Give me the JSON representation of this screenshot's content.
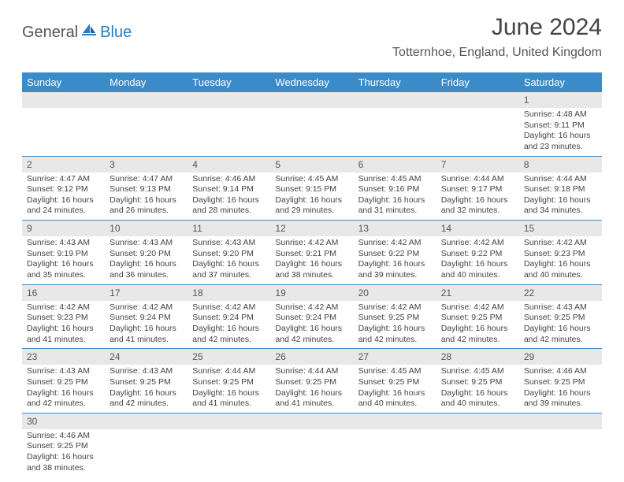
{
  "logo": {
    "text1": "General",
    "text2": "Blue"
  },
  "title": "June 2024",
  "location": "Totternhoe, England, United Kingdom",
  "colors": {
    "header_bg": "#3b8bc9",
    "daynum_bg": "#e8e8e8",
    "border": "#3b8bc9",
    "text": "#444444",
    "logo_gray": "#555555",
    "logo_blue": "#2a7bbf"
  },
  "day_names": [
    "Sunday",
    "Monday",
    "Tuesday",
    "Wednesday",
    "Thursday",
    "Friday",
    "Saturday"
  ],
  "weeks": [
    [
      null,
      null,
      null,
      null,
      null,
      null,
      {
        "n": "1",
        "sr": "4:48 AM",
        "ss": "9:11 PM",
        "dl": "16 hours and 23 minutes."
      }
    ],
    [
      {
        "n": "2",
        "sr": "4:47 AM",
        "ss": "9:12 PM",
        "dl": "16 hours and 24 minutes."
      },
      {
        "n": "3",
        "sr": "4:47 AM",
        "ss": "9:13 PM",
        "dl": "16 hours and 26 minutes."
      },
      {
        "n": "4",
        "sr": "4:46 AM",
        "ss": "9:14 PM",
        "dl": "16 hours and 28 minutes."
      },
      {
        "n": "5",
        "sr": "4:45 AM",
        "ss": "9:15 PM",
        "dl": "16 hours and 29 minutes."
      },
      {
        "n": "6",
        "sr": "4:45 AM",
        "ss": "9:16 PM",
        "dl": "16 hours and 31 minutes."
      },
      {
        "n": "7",
        "sr": "4:44 AM",
        "ss": "9:17 PM",
        "dl": "16 hours and 32 minutes."
      },
      {
        "n": "8",
        "sr": "4:44 AM",
        "ss": "9:18 PM",
        "dl": "16 hours and 34 minutes."
      }
    ],
    [
      {
        "n": "9",
        "sr": "4:43 AM",
        "ss": "9:19 PM",
        "dl": "16 hours and 35 minutes."
      },
      {
        "n": "10",
        "sr": "4:43 AM",
        "ss": "9:20 PM",
        "dl": "16 hours and 36 minutes."
      },
      {
        "n": "11",
        "sr": "4:43 AM",
        "ss": "9:20 PM",
        "dl": "16 hours and 37 minutes."
      },
      {
        "n": "12",
        "sr": "4:42 AM",
        "ss": "9:21 PM",
        "dl": "16 hours and 38 minutes."
      },
      {
        "n": "13",
        "sr": "4:42 AM",
        "ss": "9:22 PM",
        "dl": "16 hours and 39 minutes."
      },
      {
        "n": "14",
        "sr": "4:42 AM",
        "ss": "9:22 PM",
        "dl": "16 hours and 40 minutes."
      },
      {
        "n": "15",
        "sr": "4:42 AM",
        "ss": "9:23 PM",
        "dl": "16 hours and 40 minutes."
      }
    ],
    [
      {
        "n": "16",
        "sr": "4:42 AM",
        "ss": "9:23 PM",
        "dl": "16 hours and 41 minutes."
      },
      {
        "n": "17",
        "sr": "4:42 AM",
        "ss": "9:24 PM",
        "dl": "16 hours and 41 minutes."
      },
      {
        "n": "18",
        "sr": "4:42 AM",
        "ss": "9:24 PM",
        "dl": "16 hours and 42 minutes."
      },
      {
        "n": "19",
        "sr": "4:42 AM",
        "ss": "9:24 PM",
        "dl": "16 hours and 42 minutes."
      },
      {
        "n": "20",
        "sr": "4:42 AM",
        "ss": "9:25 PM",
        "dl": "16 hours and 42 minutes."
      },
      {
        "n": "21",
        "sr": "4:42 AM",
        "ss": "9:25 PM",
        "dl": "16 hours and 42 minutes."
      },
      {
        "n": "22",
        "sr": "4:43 AM",
        "ss": "9:25 PM",
        "dl": "16 hours and 42 minutes."
      }
    ],
    [
      {
        "n": "23",
        "sr": "4:43 AM",
        "ss": "9:25 PM",
        "dl": "16 hours and 42 minutes."
      },
      {
        "n": "24",
        "sr": "4:43 AM",
        "ss": "9:25 PM",
        "dl": "16 hours and 42 minutes."
      },
      {
        "n": "25",
        "sr": "4:44 AM",
        "ss": "9:25 PM",
        "dl": "16 hours and 41 minutes."
      },
      {
        "n": "26",
        "sr": "4:44 AM",
        "ss": "9:25 PM",
        "dl": "16 hours and 41 minutes."
      },
      {
        "n": "27",
        "sr": "4:45 AM",
        "ss": "9:25 PM",
        "dl": "16 hours and 40 minutes."
      },
      {
        "n": "28",
        "sr": "4:45 AM",
        "ss": "9:25 PM",
        "dl": "16 hours and 40 minutes."
      },
      {
        "n": "29",
        "sr": "4:46 AM",
        "ss": "9:25 PM",
        "dl": "16 hours and 39 minutes."
      }
    ],
    [
      {
        "n": "30",
        "sr": "4:46 AM",
        "ss": "9:25 PM",
        "dl": "16 hours and 38 minutes."
      },
      null,
      null,
      null,
      null,
      null,
      null
    ]
  ],
  "labels": {
    "sunrise": "Sunrise:",
    "sunset": "Sunset:",
    "daylight": "Daylight:"
  }
}
